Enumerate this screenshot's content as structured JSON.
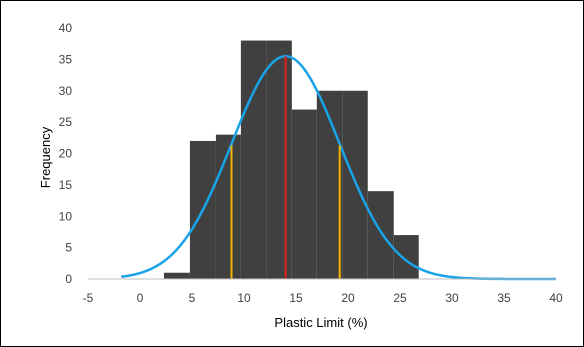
{
  "chart_data": {
    "type": "bar",
    "title": "",
    "xlabel": "Plastic Limit (%)",
    "ylabel": "Frequency",
    "xlim": [
      -5,
      40
    ],
    "ylim": [
      0,
      40
    ],
    "x_ticks": [
      -5,
      0,
      5,
      10,
      15,
      20,
      25,
      30,
      35,
      40
    ],
    "y_ticks": [
      0,
      5,
      10,
      15,
      20,
      25,
      30,
      35,
      40
    ],
    "grid": false,
    "legend": "none",
    "histogram": {
      "color": "#404040",
      "bins": [
        {
          "start": 2.3,
          "end": 4.8,
          "value": 1
        },
        {
          "start": 4.8,
          "end": 7.3,
          "value": 22
        },
        {
          "start": 7.3,
          "end": 9.7,
          "value": 23
        },
        {
          "start": 9.7,
          "end": 12.2,
          "value": 38
        },
        {
          "start": 12.2,
          "end": 14.6,
          "value": 38
        },
        {
          "start": 14.6,
          "end": 17.0,
          "value": 27
        },
        {
          "start": 17.0,
          "end": 19.5,
          "value": 30
        },
        {
          "start": 19.5,
          "end": 21.9,
          "value": 30
        },
        {
          "start": 21.9,
          "end": 24.4,
          "value": 14
        },
        {
          "start": 24.4,
          "end": 26.8,
          "value": 7
        }
      ]
    },
    "normal_curve": {
      "color": "#1aa3e8",
      "mean": 14.0,
      "std": 5.2,
      "peak": 35.5,
      "x_start": -1.8,
      "x_end": 40
    },
    "reference_lines": [
      {
        "x": 14.0,
        "y_top": 35.5,
        "color": "#e0201a"
      },
      {
        "x": 8.8,
        "y_top": 21.3,
        "color": "#f5b400"
      },
      {
        "x": 19.2,
        "y_top": 21.3,
        "color": "#f5b400"
      }
    ]
  }
}
